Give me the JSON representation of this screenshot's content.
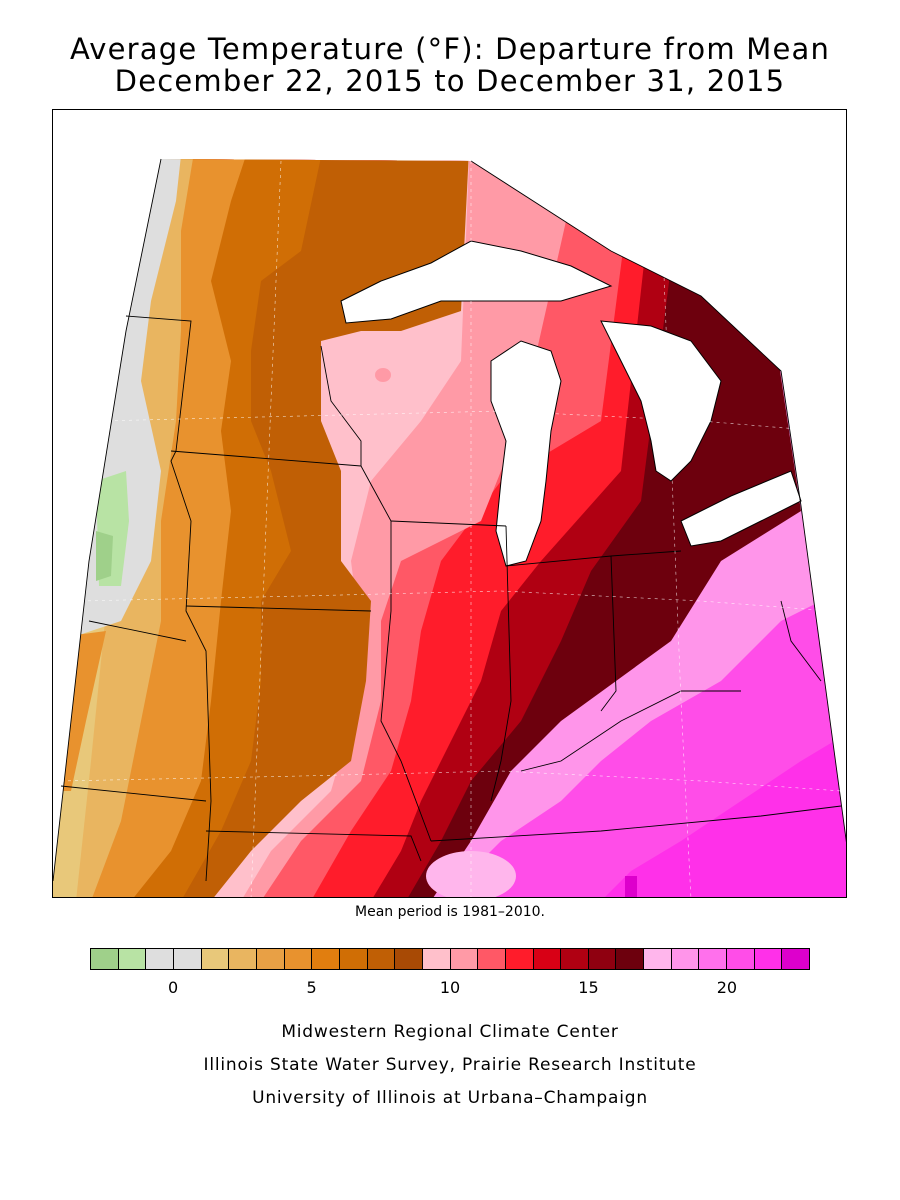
{
  "title": {
    "line1": "Average Temperature (°F): Departure from Mean",
    "line2": "December 22, 2015 to December 31, 2015"
  },
  "note": "Mean period is 1981–2010.",
  "legend": {
    "colors": [
      "#9fd08a",
      "#b8e3a4",
      "#dedede",
      "#dedede",
      "#e8c87a",
      "#e9b560",
      "#e8a045",
      "#e8922e",
      "#e17e0f",
      "#d06e05",
      "#c05f05",
      "#a84a05",
      "#ffc0cb",
      "#ff9aa6",
      "#ff5866",
      "#ff1c2b",
      "#d80015",
      "#b00012",
      "#8f0010",
      "#6d000d",
      "#ffb6ec",
      "#ff95ea",
      "#ff70ec",
      "#ff4de8",
      "#ff30e9",
      "#dd00cc"
    ],
    "ticks": [
      {
        "label": "0",
        "index": 3
      },
      {
        "label": "5",
        "index": 8
      },
      {
        "label": "10",
        "index": 13
      },
      {
        "label": "15",
        "index": 18
      },
      {
        "label": "20",
        "index": 23
      }
    ]
  },
  "credits": {
    "line1": "Midwestern Regional Climate Center",
    "line2": "Illinois State Water Survey, Prairie Research Institute",
    "line3": "University of Illinois at Urbana–Champaign"
  }
}
